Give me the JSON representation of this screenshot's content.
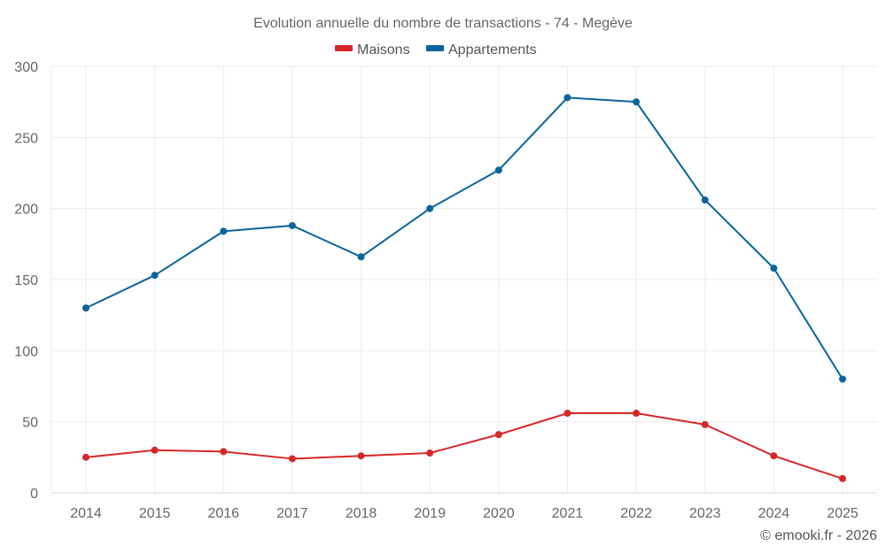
{
  "chart_data": {
    "type": "line",
    "title": "Evolution annuelle du nombre de transactions - 74 - Megève",
    "xlabel": "",
    "ylabel": "",
    "categories": [
      "2014",
      "2015",
      "2016",
      "2017",
      "2018",
      "2019",
      "2020",
      "2021",
      "2022",
      "2023",
      "2024",
      "2025"
    ],
    "series": [
      {
        "name": "Maisons",
        "color": "#d62728",
        "values": [
          25,
          30,
          29,
          24,
          26,
          28,
          41,
          56,
          56,
          48,
          26,
          10
        ]
      },
      {
        "name": "Appartements",
        "color": "#08649c",
        "values": [
          130,
          153,
          184,
          188,
          166,
          200,
          227,
          278,
          275,
          206,
          158,
          80
        ]
      }
    ],
    "ylim": [
      0,
      300
    ],
    "yticks": [
      0,
      50,
      100,
      150,
      200,
      250,
      300
    ],
    "ytick_labels": [
      "0",
      "50",
      "100",
      "150",
      "200",
      "250",
      "300"
    ],
    "grid": true,
    "legend_position": "top-center",
    "credit": "© emooki.fr - 2026"
  }
}
